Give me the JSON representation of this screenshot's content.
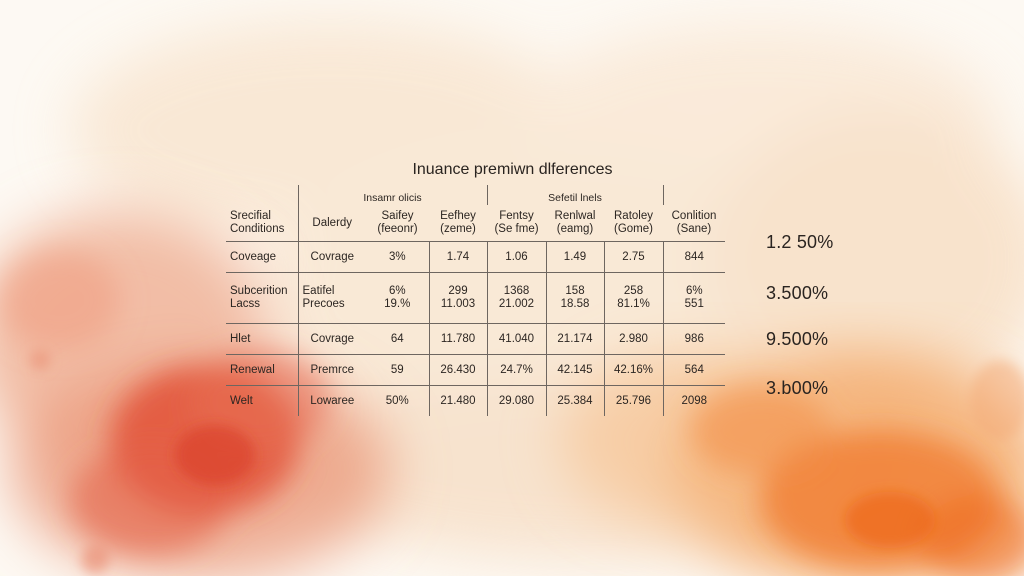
{
  "title": "Inuance premiwn dlferences",
  "groups": [
    "Insamr olicis",
    "Sefetil lnels"
  ],
  "headers": {
    "first": [
      "Srecifial",
      "Conditions"
    ],
    "second": "Dalerdy",
    "cols": [
      [
        "Saifey",
        "(feeonr)"
      ],
      [
        "Eefhey",
        "(zeme)"
      ],
      [
        "Fentsy",
        "(Se fme)"
      ],
      [
        "Renlwal",
        "(eamg)"
      ],
      [
        "Ratoley",
        "(Gome)"
      ],
      [
        "Conlition",
        "(Sane)"
      ]
    ]
  },
  "rows": [
    {
      "label": [
        "Coveage"
      ],
      "type": [
        "Covrage"
      ],
      "values": [
        [
          "3%"
        ],
        [
          "1.74"
        ],
        [
          "1.06"
        ],
        [
          "1.49"
        ],
        [
          "2.75"
        ],
        [
          "844"
        ]
      ]
    },
    {
      "label": [
        "Subcerition",
        "Lacss"
      ],
      "type": [
        "Eatifel",
        "Precoes"
      ],
      "values": [
        [
          "6%",
          "19.%"
        ],
        [
          "299",
          "11.003"
        ],
        [
          "1368",
          "21.002"
        ],
        [
          "158",
          "18.58"
        ],
        [
          "258",
          "81.1%"
        ],
        [
          "6%",
          "551"
        ]
      ]
    },
    {
      "label": [
        "Hlet"
      ],
      "type": [
        "Covrage"
      ],
      "values": [
        [
          "64"
        ],
        [
          "11.780"
        ],
        [
          "41.040"
        ],
        [
          "21.174"
        ],
        [
          "2.980"
        ],
        [
          "986"
        ]
      ]
    },
    {
      "label": [
        "Renewal"
      ],
      "type": [
        "Premrce"
      ],
      "values": [
        [
          "59"
        ],
        [
          "26.430"
        ],
        [
          "24.7%"
        ],
        [
          "42.145"
        ],
        [
          "42.16%"
        ],
        [
          "564"
        ]
      ]
    },
    {
      "label": [
        "Welt"
      ],
      "type": [
        "Lowaree"
      ],
      "values": [
        [
          "50%"
        ],
        [
          "21.480"
        ],
        [
          "29.080"
        ],
        [
          "25.384"
        ],
        [
          "25.796"
        ],
        [
          "2098"
        ]
      ]
    }
  ],
  "side_percentages": [
    "1.2 50%",
    "3.500%",
    "9.500%",
    "3.b00%"
  ],
  "colors": {
    "wash_red": "#e0452b",
    "wash_orange": "#f07a2e",
    "wash_peach": "#f6d9b8",
    "rule": "#6e6660",
    "ink": "#2a2420"
  }
}
